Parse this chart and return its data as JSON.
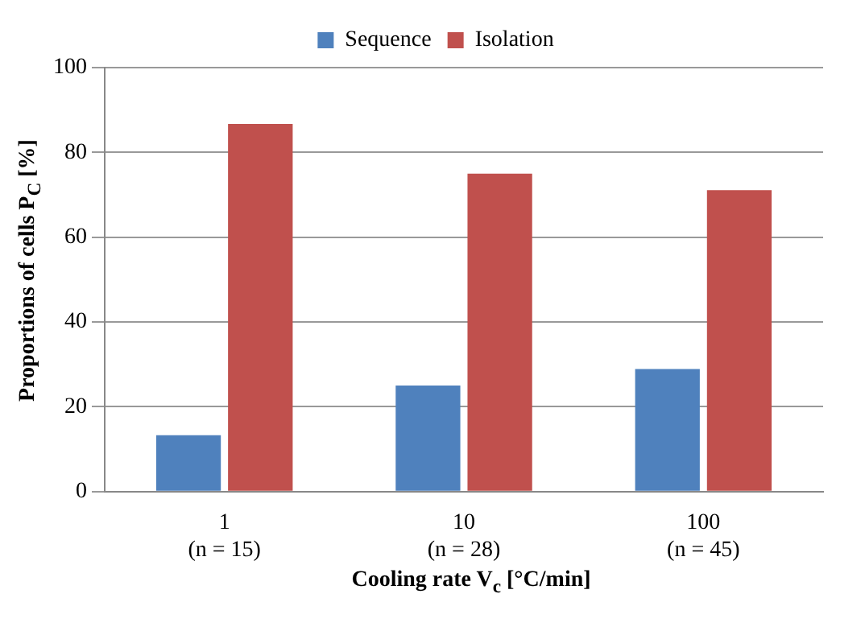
{
  "chart_data": {
    "type": "bar",
    "xlabel": "Cooling rate V$_{c}$ [°C/min]",
    "ylabel": "Proportions of cells P$_{C}$ [%]",
    "categories": [
      "1\n(n = 15)",
      "10\n(n = 28)",
      "100\n(n = 45)"
    ],
    "series": [
      {
        "name": "Sequence",
        "color": "#4f81bd",
        "values": [
          13.3,
          25,
          28.9
        ]
      },
      {
        "name": "Isolation",
        "color": "#c0504d",
        "values": [
          86.7,
          75,
          71.1
        ]
      }
    ],
    "ylim": [
      0,
      100
    ],
    "yticks": [
      0,
      20,
      40,
      60,
      80,
      100
    ],
    "grid": "y",
    "legend": "top"
  }
}
